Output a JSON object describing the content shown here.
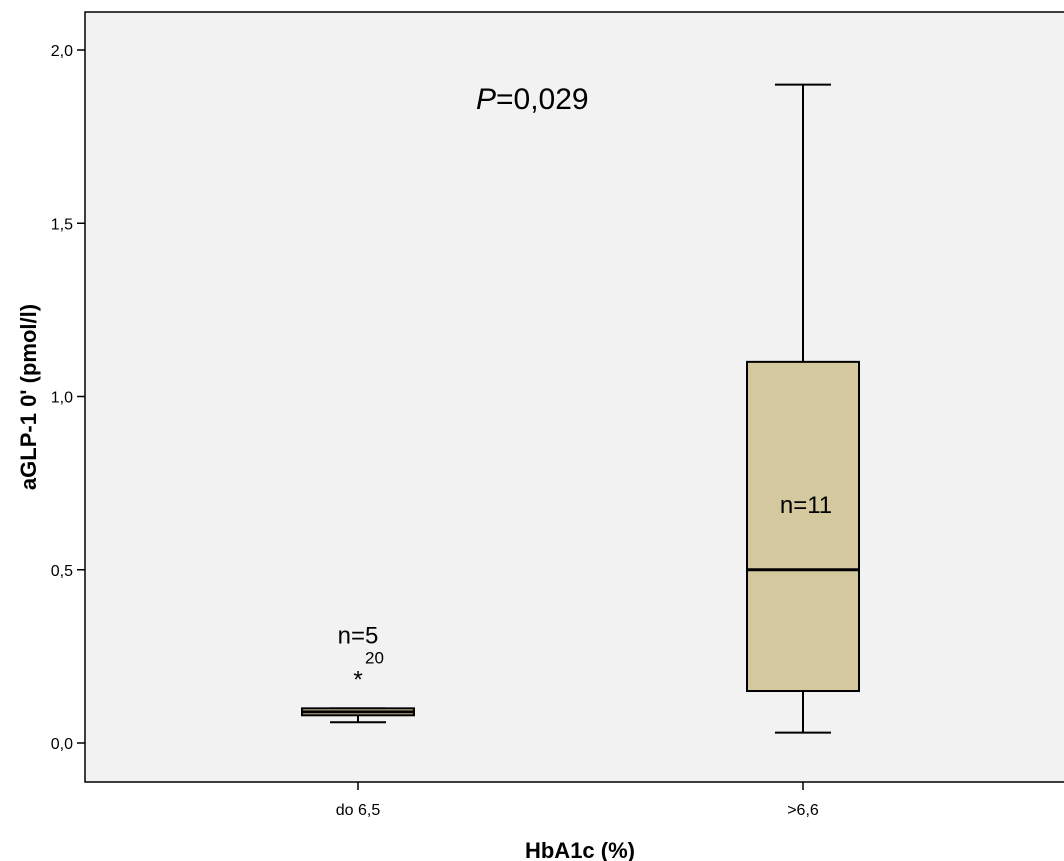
{
  "chart_data": {
    "type": "boxplot",
    "xlabel": "HbA1c (%)",
    "ylabel": "aGLP-1 0' (pmol/l)",
    "ylim": [
      -0.11,
      2.11
    ],
    "yticks": [
      0.0,
      0.5,
      1.0,
      1.5,
      2.0
    ],
    "ytick_labels": [
      "0,0",
      "0,5",
      "1,0",
      "1,5",
      "2,0"
    ],
    "categories": [
      "do 6,5",
      ">6,6"
    ],
    "box_fill": "#d4c99e",
    "plot_bg": "#f2f2f2",
    "groups": [
      {
        "category": "do 6,5",
        "whisker_low": 0.06,
        "q1": 0.08,
        "median": 0.09,
        "q3": 0.1,
        "whisker_high": 0.1,
        "n_label": "n=5",
        "outliers": [
          {
            "value": 0.2,
            "marker": "*",
            "label": "20"
          }
        ]
      },
      {
        "category": ">6,6",
        "whisker_low": 0.03,
        "q1": 0.15,
        "median": 0.5,
        "q3": 1.1,
        "whisker_high": 1.9,
        "n_label": "n=11",
        "outliers": []
      }
    ],
    "annotation": {
      "p_symbol": "P",
      "p_value": "=0,029"
    }
  }
}
